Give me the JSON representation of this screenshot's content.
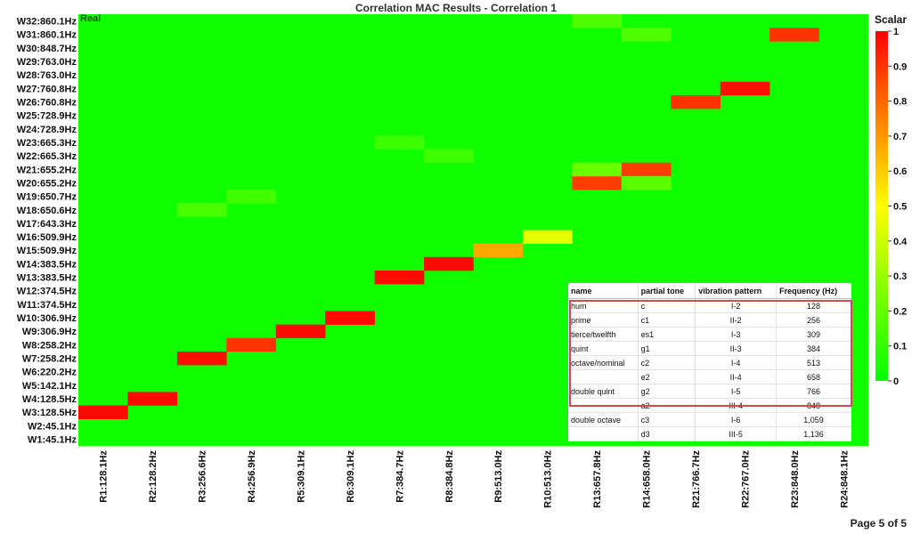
{
  "page": {
    "indicator": "Page 5 of 5"
  },
  "chart_data": {
    "type": "heatmap",
    "title": "Correlation MAC Results - Correlation 1",
    "mode_label": "Real",
    "colorbar": {
      "label": "Scalar",
      "min": 0,
      "max": 1,
      "ticks": [
        "1",
        "0.9",
        "0.8",
        "0.7",
        "0.6",
        "0.5",
        "0.4",
        "0.3",
        "0.2",
        "0.1",
        "0"
      ]
    },
    "y_labels": [
      "W32:860.1Hz",
      "W31:860.1Hz",
      "W30:848.7Hz",
      "W29:763.0Hz",
      "W28:763.0Hz",
      "W27:760.8Hz",
      "W26:760.8Hz",
      "W25:728.9Hz",
      "W24:728.9Hz",
      "W23:665.3Hz",
      "W22:665.3Hz",
      "W21:655.2Hz",
      "W20:655.2Hz",
      "W19:650.7Hz",
      "W18:650.6Hz",
      "W17:643.3Hz",
      "W16:509.9Hz",
      "W15:509.9Hz",
      "W14:383.5Hz",
      "W13:383.5Hz",
      "W12:374.5Hz",
      "W11:374.5Hz",
      "W10:306.9Hz",
      "W9:306.9Hz",
      "W8:258.2Hz",
      "W7:258.2Hz",
      "W6:220.2Hz",
      "W5:142.1Hz",
      "W4:128.5Hz",
      "W3:128.5Hz",
      "W2:45.1Hz",
      "W1:45.1Hz"
    ],
    "x_labels": [
      "R1:128.1Hz",
      "R2:128.2Hz",
      "R3:256.6Hz",
      "R4:256.9Hz",
      "R5:309.1Hz",
      "R6:309.1Hz",
      "R7:384.7Hz",
      "R8:384.8Hz",
      "R9:513.0Hz",
      "R10:513.0Hz",
      "R13:657.8Hz",
      "R14:658.0Hz",
      "R21:766.7Hz",
      "R22:767.0Hz",
      "R23:848.0Hz",
      "R24:848.1Hz"
    ],
    "background_value": 0.03,
    "cells": [
      {
        "x": "R1:128.1Hz",
        "y": "W3:128.5Hz",
        "value": 0.98
      },
      {
        "x": "R2:128.2Hz",
        "y": "W4:128.5Hz",
        "value": 0.98
      },
      {
        "x": "R3:256.6Hz",
        "y": "W7:258.2Hz",
        "value": 0.97
      },
      {
        "x": "R3:256.6Hz",
        "y": "W18:650.6Hz",
        "value": 0.14
      },
      {
        "x": "R4:256.9Hz",
        "y": "W8:258.2Hz",
        "value": 0.9
      },
      {
        "x": "R4:256.9Hz",
        "y": "W19:650.7Hz",
        "value": 0.13
      },
      {
        "x": "R5:309.1Hz",
        "y": "W9:306.9Hz",
        "value": 0.98
      },
      {
        "x": "R6:309.1Hz",
        "y": "W10:306.9Hz",
        "value": 0.98
      },
      {
        "x": "R7:384.7Hz",
        "y": "W13:383.5Hz",
        "value": 0.98
      },
      {
        "x": "R7:384.7Hz",
        "y": "W23:665.3Hz",
        "value": 0.12
      },
      {
        "x": "R8:384.8Hz",
        "y": "W14:383.5Hz",
        "value": 0.98
      },
      {
        "x": "R8:384.8Hz",
        "y": "W22:665.3Hz",
        "value": 0.12
      },
      {
        "x": "R9:513.0Hz",
        "y": "W15:509.9Hz",
        "value": 0.67
      },
      {
        "x": "R10:513.0Hz",
        "y": "W16:509.9Hz",
        "value": 0.45
      },
      {
        "x": "R13:657.8Hz",
        "y": "W20:655.2Hz",
        "value": 0.88
      },
      {
        "x": "R13:657.8Hz",
        "y": "W21:655.2Hz",
        "value": 0.2
      },
      {
        "x": "R13:657.8Hz",
        "y": "W32:860.1Hz",
        "value": 0.15
      },
      {
        "x": "R14:658.0Hz",
        "y": "W21:655.2Hz",
        "value": 0.88
      },
      {
        "x": "R14:658.0Hz",
        "y": "W20:655.2Hz",
        "value": 0.18
      },
      {
        "x": "R14:658.0Hz",
        "y": "W31:860.1Hz",
        "value": 0.15
      },
      {
        "x": "R21:766.7Hz",
        "y": "W26:760.8Hz",
        "value": 0.9
      },
      {
        "x": "R22:767.0Hz",
        "y": "W27:760.8Hz",
        "value": 0.97
      },
      {
        "x": "R23:848.0Hz",
        "y": "W31:860.1Hz",
        "value": 0.9
      }
    ]
  },
  "table": {
    "headers": [
      "name",
      "partial tone",
      "vibration pattern",
      "Frequency (Hz)"
    ],
    "rows": [
      [
        "hum",
        "c",
        "I-2",
        "128"
      ],
      [
        "prime",
        "c1",
        "II-2",
        "256"
      ],
      [
        "tierce/twelfth",
        "es1",
        "I-3",
        "309"
      ],
      [
        "quint",
        "g1",
        "II-3",
        "384"
      ],
      [
        "octave/nominal",
        "c2",
        "I-4",
        "513"
      ],
      [
        "",
        "e2",
        "II-4",
        "658"
      ],
      [
        "double quint",
        "g2",
        "I-5",
        "766"
      ],
      [
        "",
        "a2",
        "III-4",
        "848"
      ],
      [
        "double octave",
        "c3",
        "I-6",
        "1,059"
      ],
      [
        "",
        "d3",
        "III-5",
        "1,136"
      ]
    ]
  },
  "colors": {
    "highlight_border": "#d84a4a"
  }
}
